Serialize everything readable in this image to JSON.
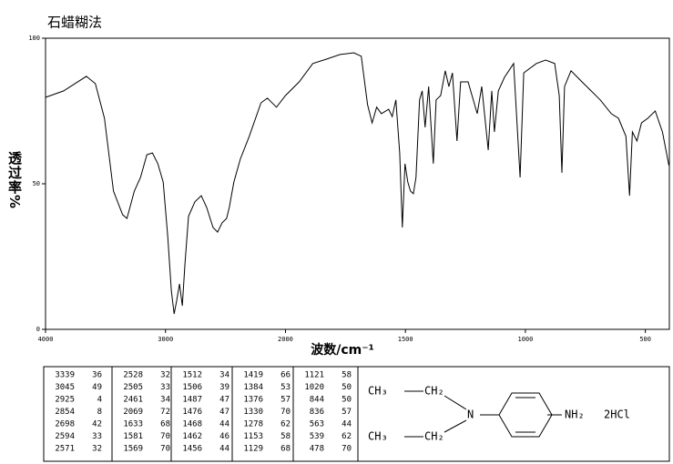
{
  "chart_data": {
    "type": "line",
    "title": "石蜡糊法",
    "ylabel": "透过率%",
    "xlabel": "波数/cm⁻¹",
    "xlim": [
      4000,
      400
    ],
    "x_scale_change": {
      "at": 2000,
      "factor": 2
    },
    "xticks": [
      4000,
      3000,
      2000,
      1500,
      1000,
      500
    ],
    "ylim": [
      0,
      100
    ],
    "yticks": [
      0,
      50,
      100
    ],
    "color": "#000000",
    "x": [
      4000,
      3849,
      3660,
      3585,
      3509,
      3434,
      3358,
      3321,
      3260,
      3208,
      3155,
      3109,
      3064,
      3019,
      2981,
      2951,
      2928,
      2906,
      2883,
      2860,
      2838,
      2808,
      2755,
      2702,
      2657,
      2604,
      2566,
      2528,
      2491,
      2468,
      2430,
      2377,
      2302,
      2204,
      2151,
      2075,
      2000,
      1943,
      1886,
      1829,
      1772,
      1715,
      1684,
      1658,
      1639,
      1620,
      1600,
      1570,
      1555,
      1540,
      1524,
      1513,
      1502,
      1490,
      1479,
      1467,
      1456,
      1441,
      1430,
      1418,
      1403,
      1384,
      1372,
      1353,
      1334,
      1319,
      1304,
      1285,
      1270,
      1239,
      1201,
      1182,
      1155,
      1140,
      1129,
      1113,
      1087,
      1049,
      1022,
      1007,
      954,
      916,
      878,
      859,
      848,
      837,
      810,
      764,
      726,
      688,
      642,
      612,
      581,
      566,
      554,
      535,
      516,
      490,
      459,
      429,
      402
    ],
    "values": [
      79.7,
      81.9,
      86.9,
      84.4,
      72.5,
      47.5,
      39.4,
      38.1,
      47.5,
      52.2,
      60,
      60.6,
      56.9,
      50.6,
      31.9,
      13.1,
      5.3,
      10,
      15.6,
      8.1,
      22.5,
      38.8,
      43.8,
      45.9,
      41.9,
      35,
      33.4,
      36.6,
      38.1,
      41.9,
      50.6,
      58.4,
      66.3,
      77.8,
      79.4,
      76.3,
      80.3,
      85,
      91.3,
      92.8,
      94.4,
      95,
      93.8,
      77.2,
      70.9,
      76.3,
      74.1,
      75.6,
      73.1,
      78.8,
      60.6,
      35,
      56.9,
      50.6,
      47.5,
      46.6,
      52.2,
      78.8,
      81.9,
      69.4,
      83.4,
      56.9,
      78.8,
      80.3,
      88.8,
      83.4,
      88.1,
      64.7,
      85,
      85,
      74.1,
      83.4,
      61.6,
      81.9,
      67.8,
      81.9,
      86.6,
      91.3,
      52.2,
      88.1,
      91.3,
      92.5,
      91.3,
      80.3,
      53.8,
      83.4,
      88.8,
      85,
      81.9,
      78.8,
      74.1,
      72.5,
      66.3,
      45.9,
      67.8,
      64.7,
      70.9,
      72.5,
      75,
      67.8,
      56.3
    ]
  },
  "peak_table": [
    [
      3339,
      36
    ],
    [
      3045,
      49
    ],
    [
      2925,
      4
    ],
    [
      2854,
      8
    ],
    [
      2698,
      42
    ],
    [
      2594,
      33
    ],
    [
      2571,
      32
    ],
    [
      2528,
      32
    ],
    [
      2505,
      33
    ],
    [
      2461,
      34
    ],
    [
      2069,
      72
    ],
    [
      1633,
      68
    ],
    [
      1581,
      70
    ],
    [
      1569,
      70
    ],
    [
      1512,
      34
    ],
    [
      1506,
      39
    ],
    [
      1487,
      47
    ],
    [
      1476,
      47
    ],
    [
      1468,
      44
    ],
    [
      1462,
      46
    ],
    [
      1456,
      44
    ],
    [
      1419,
      66
    ],
    [
      1384,
      53
    ],
    [
      1376,
      57
    ],
    [
      1330,
      70
    ],
    [
      1278,
      62
    ],
    [
      1153,
      58
    ],
    [
      1129,
      68
    ],
    [
      1121,
      58
    ],
    [
      1020,
      50
    ],
    [
      844,
      50
    ],
    [
      836,
      57
    ],
    [
      563,
      44
    ],
    [
      539,
      62
    ],
    [
      478,
      70
    ]
  ],
  "structure": {
    "top_left": "CH₃",
    "top_right": "CH₂",
    "nitrogen": "N",
    "bottom_left": "CH₃",
    "bottom_right": "CH₂",
    "amine": "NH₂",
    "salt": "2HCl"
  }
}
